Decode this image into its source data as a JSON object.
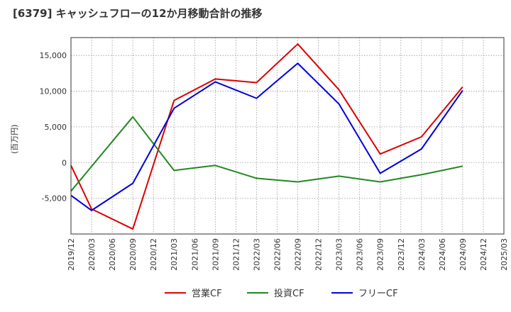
{
  "chart_data": {
    "type": "line",
    "title": "[6379]  キャッシュフローの12か月移動合計の推移",
    "ylabel": "(百万円)",
    "xlabel": "",
    "ylim": [
      -10000,
      17500
    ],
    "yticks": [
      -5000,
      0,
      5000,
      10000,
      15000
    ],
    "ytick_labels": [
      "-5,000",
      "0",
      "5,000",
      "10,000",
      "15,000"
    ],
    "xtick_labels": [
      "2019/12",
      "2020/03",
      "2020/06",
      "2020/09",
      "2020/12",
      "2021/03",
      "2021/06",
      "2021/09",
      "2021/12",
      "2022/03",
      "2022/06",
      "2022/09",
      "2022/12",
      "2023/03",
      "2023/06",
      "2023/09",
      "2023/12",
      "2024/03",
      "2024/06",
      "2024/09",
      "2024/12",
      "2025/03"
    ],
    "grid": true,
    "legend_position": "bottom",
    "series": [
      {
        "name": "営業CF",
        "color": "#dd0000",
        "points": [
          [
            0,
            -400
          ],
          [
            1,
            -6500
          ],
          [
            3,
            -9300
          ],
          [
            5,
            8700
          ],
          [
            7,
            11700
          ],
          [
            9,
            11200
          ],
          [
            11,
            16600
          ],
          [
            13,
            10200
          ],
          [
            15,
            1200
          ],
          [
            17,
            3600
          ],
          [
            19,
            10600
          ]
        ]
      },
      {
        "name": "投資CF",
        "color": "#228822",
        "points": [
          [
            0,
            -4000
          ],
          [
            3,
            6400
          ],
          [
            5,
            -1100
          ],
          [
            7,
            -400
          ],
          [
            9,
            -2200
          ],
          [
            11,
            -2700
          ],
          [
            13,
            -1900
          ],
          [
            15,
            -2700
          ],
          [
            17,
            -1700
          ],
          [
            19,
            -500
          ]
        ]
      },
      {
        "name": "フリーCF",
        "color": "#0000dd",
        "points": [
          [
            0,
            -4600
          ],
          [
            1,
            -6700
          ],
          [
            3,
            -2900
          ],
          [
            5,
            7600
          ],
          [
            7,
            11300
          ],
          [
            9,
            9000
          ],
          [
            11,
            13900
          ],
          [
            13,
            8200
          ],
          [
            15,
            -1500
          ],
          [
            17,
            1900
          ],
          [
            19,
            10100
          ]
        ]
      }
    ]
  }
}
